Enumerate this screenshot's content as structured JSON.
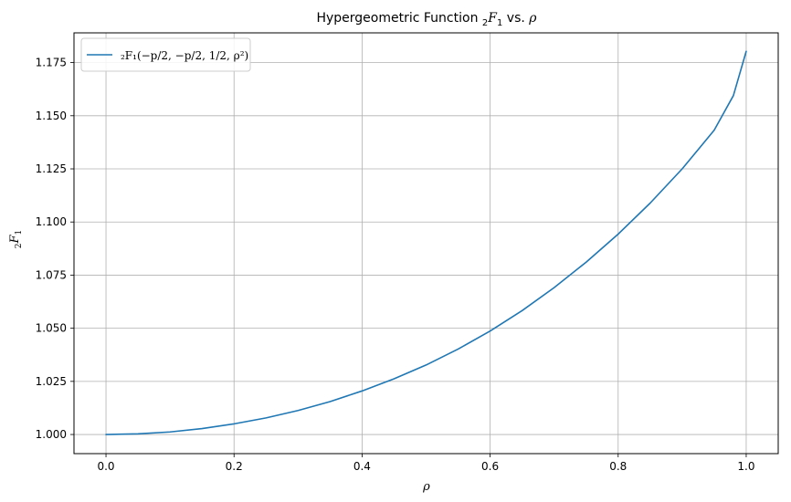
{
  "chart_data": {
    "type": "line",
    "title": {
      "prefix": "Hypergeometric Function ",
      "func_sub": "2",
      "func_main": "F",
      "func_sub2": "1",
      "middle": " vs. ",
      "var": "ρ"
    },
    "xlabel": "ρ",
    "ylabel": {
      "sub": "2",
      "main": "F",
      "sub2": "1"
    },
    "xlim": [
      -0.05,
      1.05
    ],
    "ylim": [
      0.991,
      1.189
    ],
    "xticks": [
      0.0,
      0.2,
      0.4,
      0.6,
      0.8,
      1.0
    ],
    "xtick_labels": [
      "0.0",
      "0.2",
      "0.4",
      "0.6",
      "0.8",
      "1.0"
    ],
    "yticks": [
      1.0,
      1.025,
      1.05,
      1.075,
      1.1,
      1.125,
      1.15,
      1.175
    ],
    "ytick_labels": [
      "1.000",
      "1.025",
      "1.050",
      "1.075",
      "1.100",
      "1.125",
      "1.150",
      "1.175"
    ],
    "grid": true,
    "legend_position": "top-left",
    "series": [
      {
        "name": "₂F₁(−p/2, −p/2, 1/2, ρ²)",
        "color": "#1f77b4",
        "x": [
          0.0,
          0.05,
          0.1,
          0.15,
          0.2,
          0.25,
          0.3,
          0.35,
          0.4,
          0.45,
          0.5,
          0.55,
          0.6,
          0.65,
          0.7,
          0.75,
          0.8,
          0.85,
          0.9,
          0.95,
          0.98,
          1.0
        ],
        "y": [
          1.0,
          1.0003,
          1.0012,
          1.0028,
          1.005,
          1.0078,
          1.0113,
          1.0155,
          1.0205,
          1.0262,
          1.0327,
          1.0402,
          1.0487,
          1.0583,
          1.0691,
          1.0811,
          1.0943,
          1.1089,
          1.125,
          1.1432,
          1.1595,
          1.1803
        ]
      }
    ]
  }
}
